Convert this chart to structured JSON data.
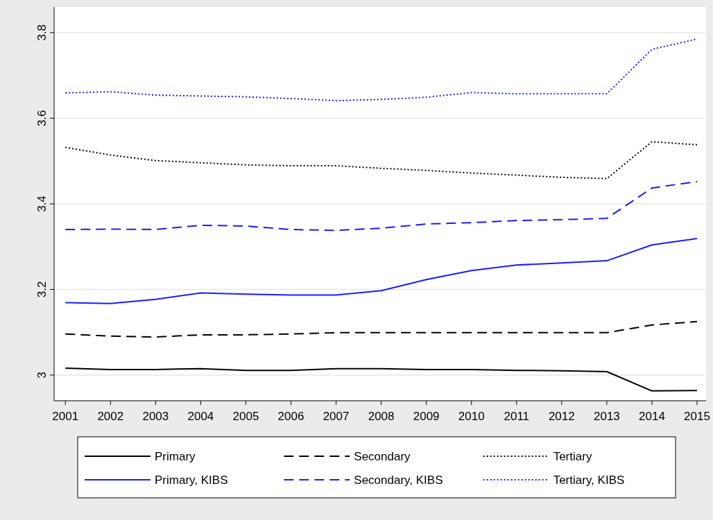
{
  "chart_data": {
    "type": "line",
    "x": [
      2001,
      2002,
      2003,
      2004,
      2005,
      2006,
      2007,
      2008,
      2009,
      2010,
      2011,
      2012,
      2013,
      2014,
      2015
    ],
    "xlim": [
      2000.75,
      2015.2
    ],
    "xticks": [
      2001,
      2002,
      2003,
      2004,
      2005,
      2006,
      2007,
      2008,
      2009,
      2010,
      2011,
      2012,
      2013,
      2014,
      2015
    ],
    "ylim": [
      2.94,
      3.86
    ],
    "yticks": [
      3,
      3.2,
      3.4,
      3.6,
      3.8
    ],
    "grid": "y",
    "legend": "bottom",
    "series": [
      {
        "name": "Primary",
        "color": "#000000",
        "line_style": "solid",
        "values": [
          3.016,
          3.013,
          3.013,
          3.015,
          3.011,
          3.011,
          3.015,
          3.015,
          3.013,
          3.013,
          3.011,
          3.01,
          3.008,
          2.963,
          2.964
        ]
      },
      {
        "name": "Secondary",
        "color": "#000000",
        "line_style": "dashed",
        "values": [
          3.096,
          3.091,
          3.089,
          3.094,
          3.094,
          3.096,
          3.099,
          3.099,
          3.099,
          3.099,
          3.099,
          3.099,
          3.099,
          3.117,
          3.125
        ]
      },
      {
        "name": "Tertiary",
        "color": "#000000",
        "line_style": "dotted",
        "values": [
          3.532,
          3.514,
          3.501,
          3.496,
          3.491,
          3.489,
          3.489,
          3.483,
          3.478,
          3.472,
          3.467,
          3.462,
          3.459,
          3.545,
          3.538
        ]
      },
      {
        "name": "Primary, KIBS",
        "color": "#1a1aff",
        "line_style": "solid",
        "values": [
          3.169,
          3.167,
          3.177,
          3.192,
          3.189,
          3.187,
          3.187,
          3.197,
          3.223,
          3.244,
          3.257,
          3.262,
          3.267,
          3.304,
          3.319
        ]
      },
      {
        "name": "Secondary, KIBS",
        "color": "#1a1aff",
        "line_style": "dashed",
        "values": [
          3.34,
          3.341,
          3.34,
          3.35,
          3.348,
          3.34,
          3.338,
          3.343,
          3.353,
          3.356,
          3.361,
          3.363,
          3.366,
          3.437,
          3.452
        ]
      },
      {
        "name": "Tertiary, KIBS",
        "color": "#1a1aff",
        "line_style": "dotted",
        "values": [
          3.659,
          3.662,
          3.654,
          3.652,
          3.65,
          3.646,
          3.641,
          3.644,
          3.649,
          3.66,
          3.657,
          3.657,
          3.657,
          3.761,
          3.785
        ]
      }
    ]
  }
}
